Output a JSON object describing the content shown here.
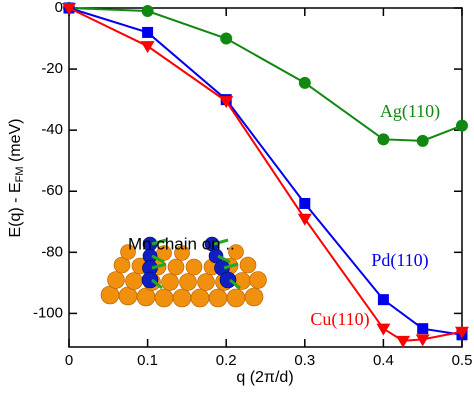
{
  "chart_data": {
    "type": "line",
    "xlabel": "q (2π/d)",
    "ylabel": {
      "main": "E(q) - E",
      "sub": "FM",
      "unit": " (meV)"
    },
    "annotation": "Mn chain on ..",
    "xlim": [
      0,
      0.5
    ],
    "xticks": [
      0,
      0.1,
      0.2,
      0.3,
      0.4,
      0.5
    ],
    "ylim": [
      -111,
      0
    ],
    "yticks": [
      0,
      -20,
      -40,
      -60,
      -80,
      -100
    ],
    "series": [
      {
        "name": "Ag(110)",
        "color": "#118811",
        "marker": "circle",
        "x": [
          0,
          0.1,
          0.2,
          0.3,
          0.4,
          0.45,
          0.5
        ],
        "values": [
          0,
          -1,
          -10,
          -24.5,
          -43,
          -43.5,
          -38.5
        ]
      },
      {
        "name": "Pd(110)",
        "color": "#0000ee",
        "marker": "square",
        "x": [
          0,
          0.1,
          0.2,
          0.3,
          0.4,
          0.45,
          0.5
        ],
        "values": [
          0,
          -8,
          -30,
          -64,
          -95.5,
          -105,
          -107
        ]
      },
      {
        "name": "Cu(110)",
        "color": "#ff0000",
        "marker": "triangle-down",
        "x": [
          0,
          0.1,
          0.2,
          0.3,
          0.4,
          0.425,
          0.45,
          0.5
        ],
        "values": [
          0,
          -12.5,
          -30.5,
          -69,
          -105,
          -109,
          -108.5,
          -106
        ]
      }
    ]
  }
}
